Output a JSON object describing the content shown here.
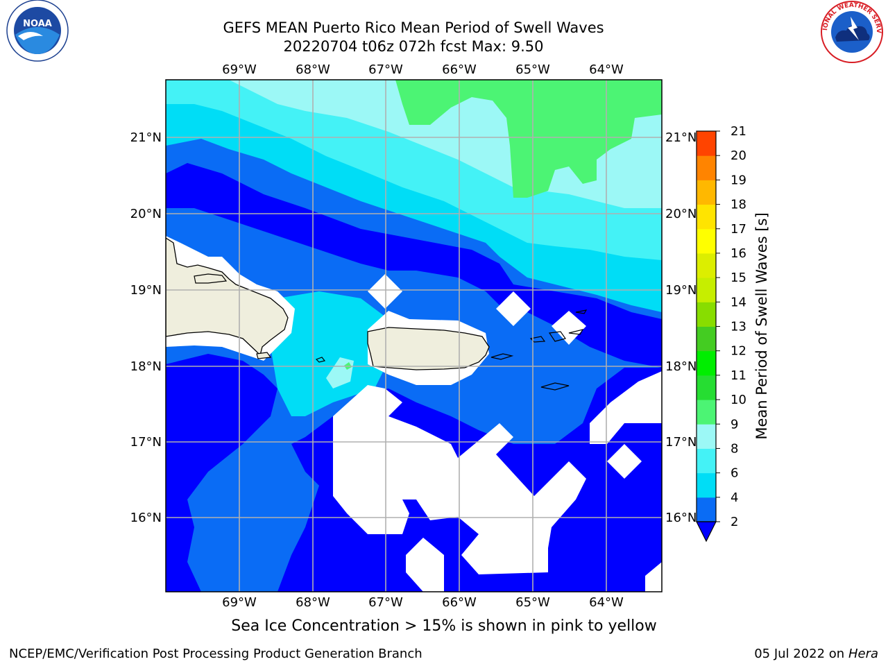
{
  "title": {
    "line1": "GEFS MEAN Puerto Rico Mean Period of Swell Waves",
    "line2": "20220704 t06z 072h fcst   Max: 9.50"
  },
  "logos": {
    "left": {
      "icon": "noaa-logo",
      "text": "NOAA"
    },
    "right": {
      "icon": "nws-logo",
      "text": "NATIONAL WEATHER SERVICE"
    }
  },
  "map": {
    "lon_labels": [
      "69°W",
      "68°W",
      "67°W",
      "66°W",
      "65°W",
      "64°W"
    ],
    "lat_labels": [
      "21°N",
      "20°N",
      "19°N",
      "18°N",
      "17°N",
      "16°N"
    ],
    "colors": {
      "land": "#efeedd",
      "grid": "#b0b0b0",
      "missing": "#ffffff"
    }
  },
  "colorbar": {
    "label": "Mean Period of Swell Waves [s]",
    "ticks": [
      "2",
      "4",
      "6",
      "8",
      "9",
      "10",
      "11",
      "12",
      "13",
      "14",
      "15",
      "16",
      "17",
      "18",
      "19",
      "20",
      "21"
    ],
    "colors": [
      "#0a6cf5",
      "#00ddf6",
      "#44f2f6",
      "#9cf8f6",
      "#4cf474",
      "#26dd32",
      "#00ee00",
      "#44cc22",
      "#88dd00",
      "#c6ee00",
      "#dcee00",
      "#ffff00",
      "#ffe400",
      "#ffb800",
      "#ff8400",
      "#ff4400",
      "#ff0000"
    ],
    "extend_color": "#0000ff"
  },
  "footer": {
    "subtitle": "Sea Ice Concentration > 15% is shown in pink to yellow",
    "left": "NCEP/EMC/Verification Post Processing Product Generation Branch",
    "right_prefix": "05 Jul 2022 on ",
    "right_italic": "Hera"
  }
}
